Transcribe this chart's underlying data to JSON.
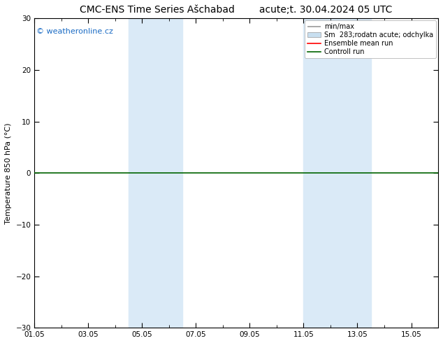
{
  "title": "CMC-ENS Time Series Ašchabad",
  "title_right": "acute;t. 30.04.2024 05 UTC",
  "ylabel": "Temperature 850 hPa (°C)",
  "watermark": "© weatheronline.cz",
  "ylim": [
    -30,
    30
  ],
  "yticks": [
    -30,
    -20,
    -10,
    0,
    10,
    20,
    30
  ],
  "xtick_labels": [
    "01.05",
    "03.05",
    "05.05",
    "07.05",
    "09.05",
    "11.05",
    "13.05",
    "15.05"
  ],
  "xtick_positions": [
    0,
    2,
    4,
    6,
    8,
    10,
    12,
    14
  ],
  "num_days": 15,
  "shaded_bands": [
    {
      "x_start": 3.5,
      "x_end": 5.5
    },
    {
      "x_start": 10.0,
      "x_end": 12.5
    }
  ],
  "shaded_color": "#daeaf7",
  "horizontal_line_y": 0.0,
  "horizontal_line_color": "#006400",
  "ensemble_mean_color": "#ff0000",
  "control_run_color": "#006400",
  "minmax_color": "#999999",
  "spread_color": "#c8dff0",
  "legend_entries": [
    "min/max",
    "Sm  283;rodatn acute; odchylka",
    "Ensemble mean run",
    "Controll run"
  ],
  "background_color": "#ffffff",
  "plot_background_color": "#ffffff",
  "font_size_title": 10,
  "font_size_axis": 8,
  "font_size_tick": 7.5,
  "font_size_legend": 7,
  "font_size_watermark": 8
}
